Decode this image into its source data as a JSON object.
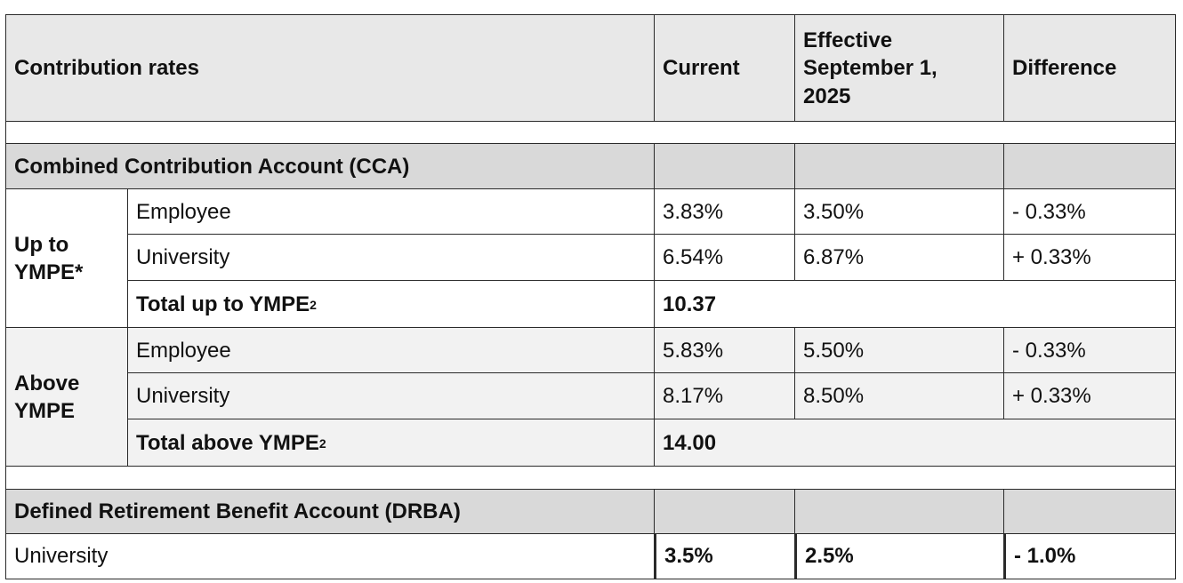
{
  "header": {
    "label": "Contribution rates",
    "current": "Current",
    "effective_line1": "Effective",
    "effective_line2": "September 1,",
    "effective_line3": "2025",
    "difference": "Difference"
  },
  "cca": {
    "title": "Combined Contribution Account (CCA)",
    "up_to_ympe": {
      "group_line1": "Up to",
      "group_line2": "YMPE*",
      "rows": [
        {
          "label": "Employee",
          "current": "3.83%",
          "effective": "3.50%",
          "difference": "- 0.33%"
        },
        {
          "label": "University",
          "current": "6.54%",
          "effective": "6.87%",
          "difference": "+ 0.33%"
        }
      ],
      "total_label": "Total up to YMPE",
      "total_sup": "2",
      "total_value": "10.37"
    },
    "above_ympe": {
      "group_line1": "Above",
      "group_line2": "YMPE",
      "rows": [
        {
          "label": "Employee",
          "current": "5.83%",
          "effective": "5.50%",
          "difference": "- 0.33%"
        },
        {
          "label": "University",
          "current": "8.17%",
          "effective": "8.50%",
          "difference": "+ 0.33%"
        }
      ],
      "total_label": "Total above YMPE",
      "total_sup": "2",
      "total_value": "14.00"
    }
  },
  "drba": {
    "title": "Defined Retirement Benefit Account (DRBA)",
    "row": {
      "label": "University",
      "current": "3.5%",
      "effective": "2.5%",
      "difference": "- 1.0%"
    }
  }
}
